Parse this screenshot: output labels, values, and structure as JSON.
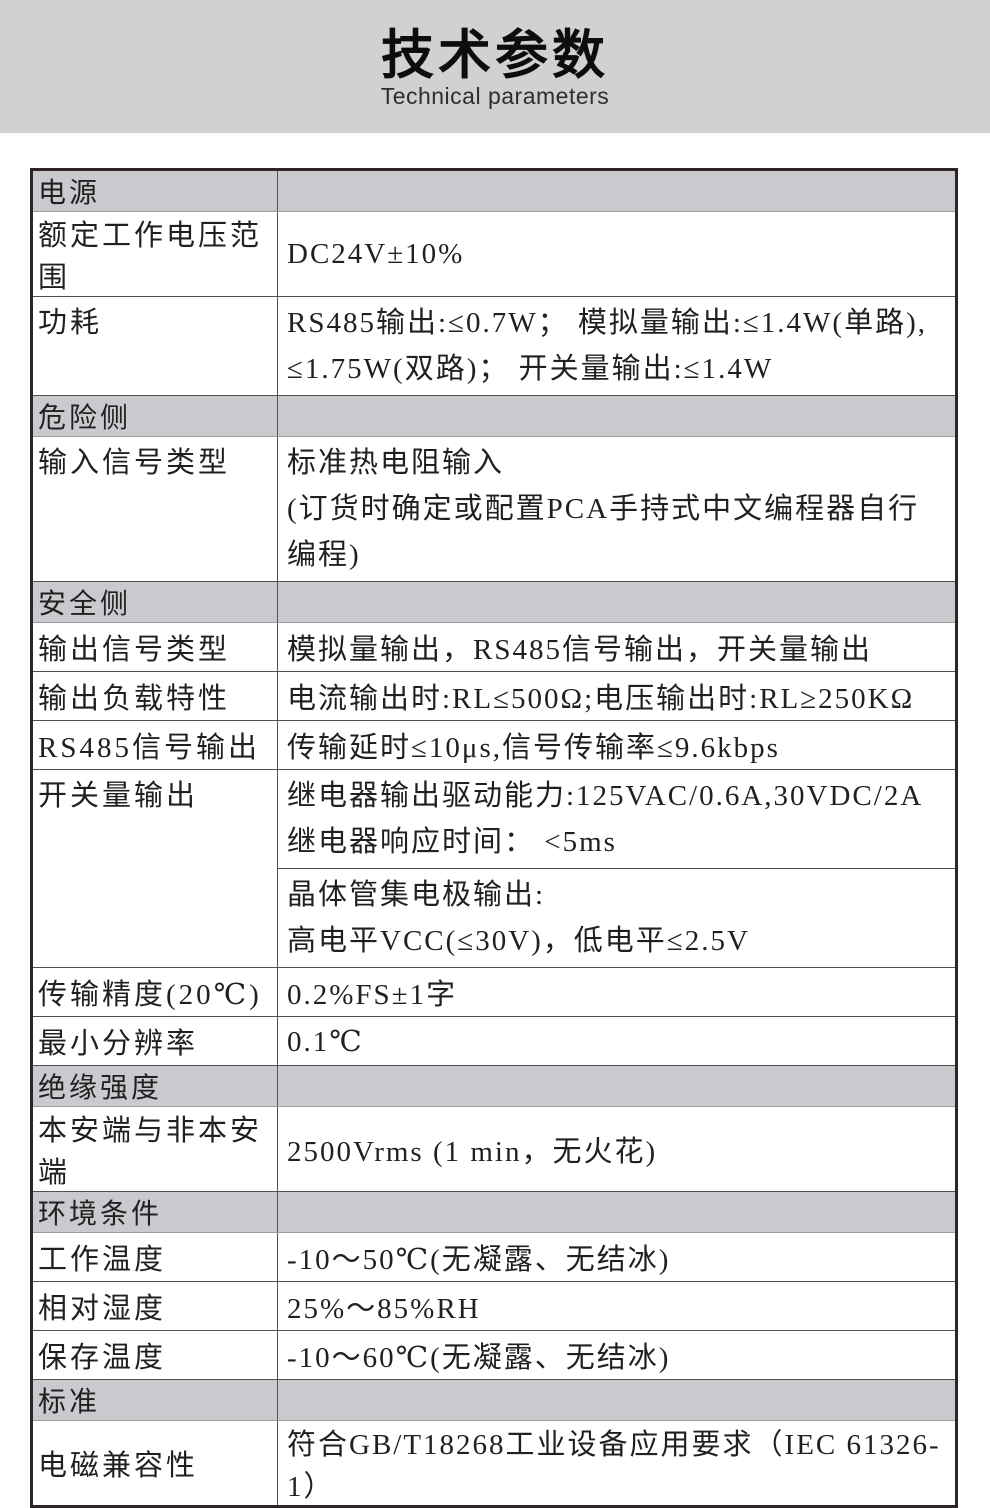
{
  "page": {
    "title_zh": "技术参数",
    "title_en": "Technical parameters"
  },
  "colors": {
    "band_bg": "#d1d1d1",
    "section_row_bg": "#cacace",
    "outer_border": "#2d2528",
    "grid_line": "#564e50",
    "text": "#231f20"
  },
  "table": {
    "rows": [
      {
        "type": "section",
        "label": "电源"
      },
      {
        "type": "data",
        "label": "额定工作电压范围",
        "value": "DC24V±10%"
      },
      {
        "type": "data",
        "label": "功耗",
        "value": "RS485输出:≤0.7W； 模拟量输出:≤1.4W(单路),\n≤1.75W(双路)； 开关量输出:≤1.4W"
      },
      {
        "type": "section",
        "label": "危险侧"
      },
      {
        "type": "data",
        "label": "输入信号类型",
        "value": "标准热电阻输入\n(订货时确定或配置PCA手持式中文编程器自行编程)"
      },
      {
        "type": "section",
        "label": "安全侧"
      },
      {
        "type": "data",
        "label": "输出信号类型",
        "value": "模拟量输出，RS485信号输出，开关量输出"
      },
      {
        "type": "data",
        "label": "输出负载特性",
        "value": "电流输出时:RL≤500Ω;电压输出时:RL≥250KΩ"
      },
      {
        "type": "data",
        "label": "RS485信号输出",
        "value": "传输延时≤10μs,信号传输率≤9.6kbps"
      },
      {
        "type": "data-span",
        "label": "开关量输出",
        "value_top": "继电器输出驱动能力:125VAC/0.6A,30VDC/2A\n继电器响应时间： <5ms",
        "value_bottom": "晶体管集电极输出:\n高电平VCC(≤30V)，低电平≤2.5V"
      },
      {
        "type": "data",
        "label": "传输精度(20℃)",
        "value": "0.2%FS±1字"
      },
      {
        "type": "data",
        "label": "最小分辨率",
        "value": "0.1℃"
      },
      {
        "type": "section",
        "label": "绝缘强度"
      },
      {
        "type": "data",
        "label": "本安端与非本安端",
        "value": "2500Vrms (1 min，无火花)"
      },
      {
        "type": "section",
        "label": "环境条件"
      },
      {
        "type": "data",
        "label": "工作温度",
        "value": "-10～50℃(无凝露、无结冰)"
      },
      {
        "type": "data",
        "label": "相对湿度",
        "value": "25%～85%RH"
      },
      {
        "type": "data",
        "label": "保存温度",
        "value": "-10～60℃(无凝露、无结冰)"
      },
      {
        "type": "section",
        "label": "标准"
      },
      {
        "type": "data",
        "label": "电磁兼容性",
        "value": "符合GB/T18268工业设备应用要求（IEC 61326-1）"
      }
    ]
  }
}
